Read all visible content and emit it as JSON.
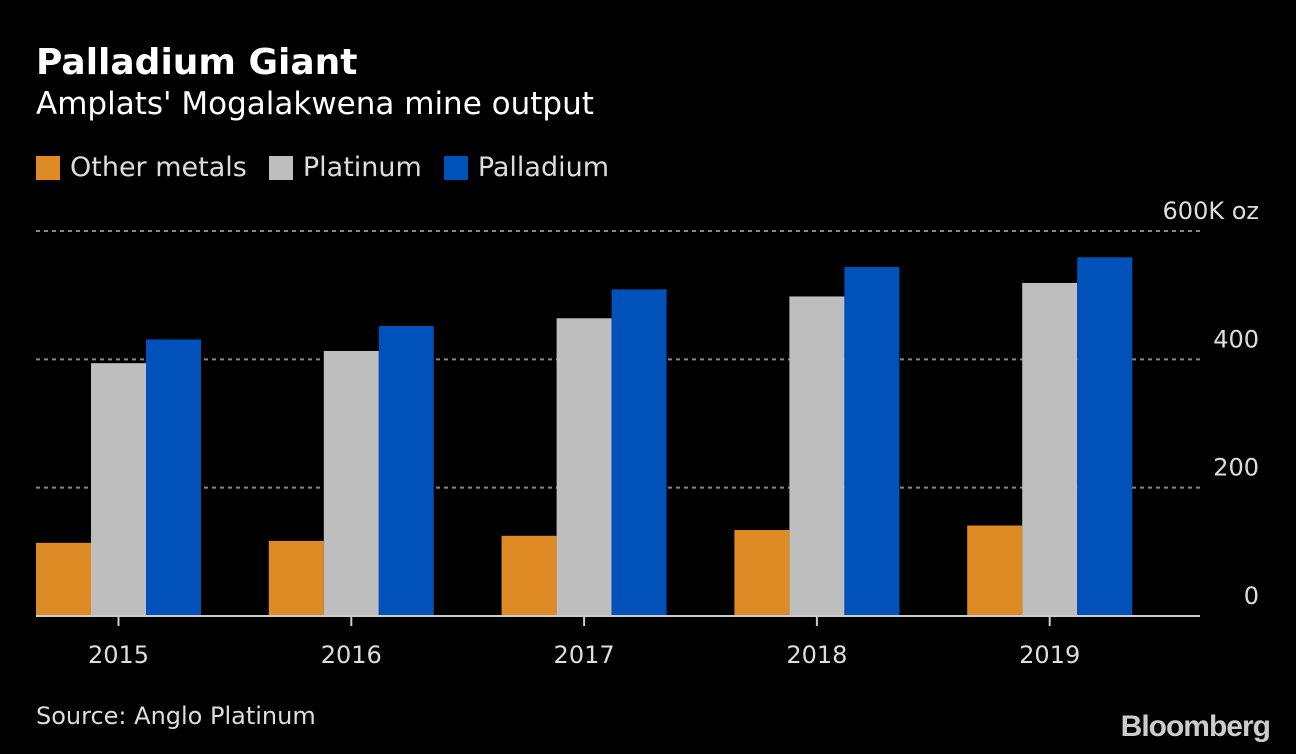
{
  "title": "Palladium Giant",
  "subtitle": "Amplats' Mogalakwena mine output",
  "source": "Source: Anglo Platinum",
  "logo": "Bloomberg",
  "chart_data": {
    "type": "bar",
    "title": "Palladium Giant",
    "subtitle": "Amplats' Mogalakwena mine output",
    "categories": [
      "2015",
      "2016",
      "2017",
      "2018",
      "2019"
    ],
    "series": [
      {
        "name": "Other metals",
        "color": "#DE8B26",
        "values": [
          114,
          117,
          125,
          134,
          141
        ]
      },
      {
        "name": "Platinum",
        "color": "#BEBEBE",
        "values": [
          394,
          413,
          464,
          498,
          519
        ]
      },
      {
        "name": "Palladium",
        "color": "#0051BA",
        "values": [
          431,
          452,
          509,
          544,
          559
        ]
      }
    ],
    "yticks": [
      "0",
      "200",
      "400",
      "600K oz"
    ],
    "ytick_values": [
      0,
      200,
      400,
      600
    ],
    "ylim": [
      0,
      600
    ],
    "grid": true,
    "legend": "top-left",
    "yaxis_side": "right"
  }
}
